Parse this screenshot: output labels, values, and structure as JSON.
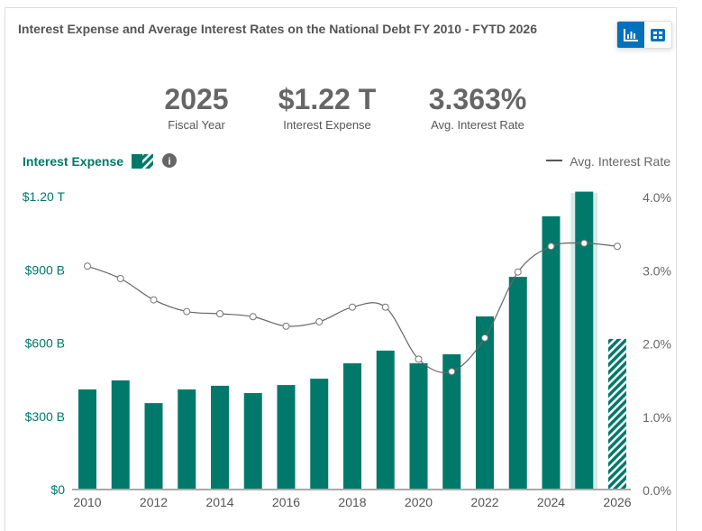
{
  "header": {
    "title": "Interest Expense and Average Interest Rates on the National Debt FY 2010 - FYTD 2026"
  },
  "toggle": {
    "chart_icon": "bar-chart-icon",
    "table_icon": "table-icon",
    "active": "chart"
  },
  "stats": [
    {
      "value": "2025",
      "label": "Fiscal Year"
    },
    {
      "value": "$1.22 T",
      "label": "Interest Expense"
    },
    {
      "value": "3.363%",
      "label": "Avg. Interest Rate"
    }
  ],
  "chart_data": {
    "type": "bar",
    "categories": [
      2010,
      2011,
      2012,
      2013,
      2014,
      2015,
      2016,
      2017,
      2018,
      2019,
      2020,
      2021,
      2022,
      2023,
      2024,
      2025,
      2026
    ],
    "series": [
      {
        "name": "Interest Expense",
        "type": "bar",
        "unit": "billions USD",
        "values": [
          410,
          447,
          354,
          410,
          425,
          395,
          428,
          454,
          517,
          569,
          517,
          554,
          709,
          871,
          1119,
          1220,
          617
        ],
        "color": "#00796b",
        "hatched_last": true,
        "highlighted": 2025
      },
      {
        "name": "Avg. Interest Rate",
        "type": "line",
        "unit": "percent",
        "values": [
          3.05,
          2.88,
          2.59,
          2.43,
          2.4,
          2.36,
          2.23,
          2.29,
          2.49,
          2.49,
          1.78,
          1.61,
          2.07,
          2.97,
          3.32,
          3.363,
          3.32
        ],
        "color": "#555555"
      }
    ],
    "left_axis": {
      "ylim": [
        0,
        1200
      ],
      "ticks": [
        "$0",
        "$300 B",
        "$600 B",
        "$900 B",
        "$1.20 T"
      ],
      "color": "#00796b"
    },
    "right_axis": {
      "ylim": [
        0,
        4
      ],
      "ticks": [
        "0.0%",
        "1.0%",
        "2.0%",
        "3.0%",
        "4.0%"
      ]
    },
    "x_ticks": [
      "2010",
      "2012",
      "2014",
      "2016",
      "2018",
      "2020",
      "2022",
      "2024",
      "2026"
    ],
    "legend": {
      "bar_label": "Interest Expense",
      "line_label": "Avg. Interest Rate",
      "bar_placement": "top-left",
      "line_placement": "top-right",
      "info_icon": "info-icon"
    },
    "grid": false
  }
}
